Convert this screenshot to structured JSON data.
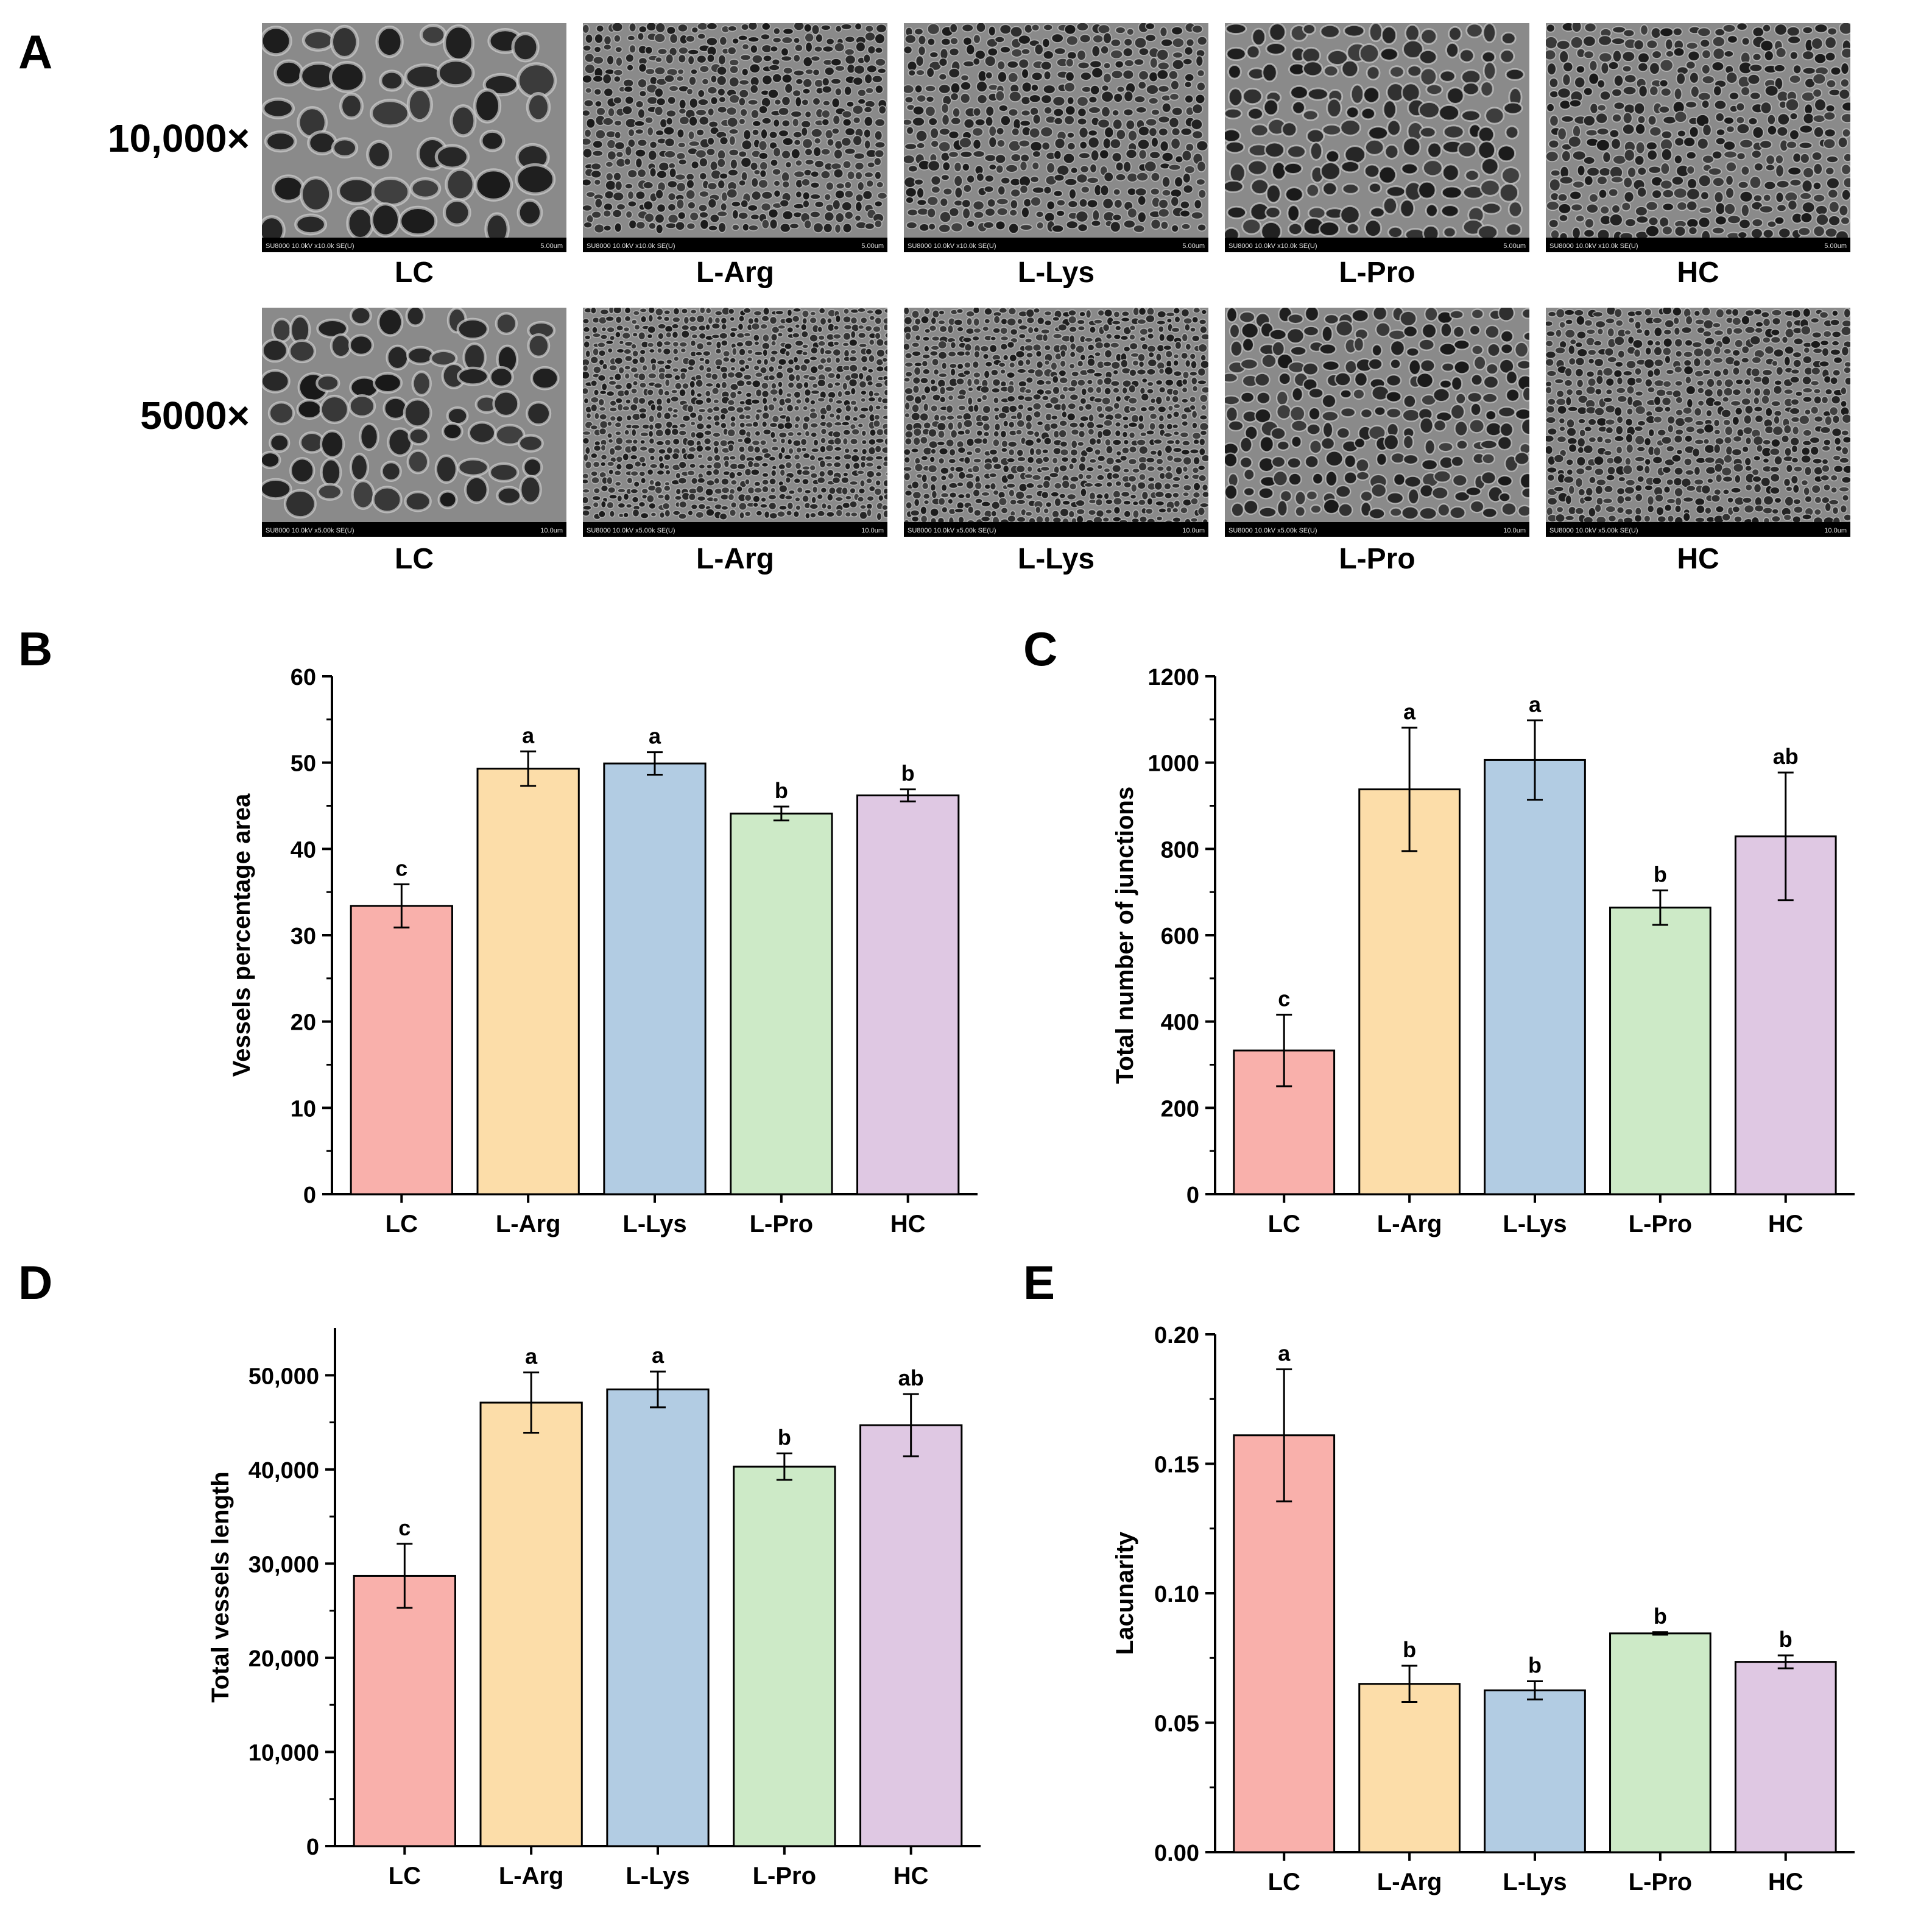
{
  "panels": {
    "A": "A",
    "B": "B",
    "C": "C",
    "D": "D",
    "E": "E"
  },
  "sem": {
    "rows": [
      {
        "magnification": "10,000×",
        "scale_text": "5.00um",
        "info_text": "SU8000 10.0kV x10.0k SE(U)"
      },
      {
        "magnification": "5000×",
        "scale_text": "10.0um",
        "info_text": "SU8000 10.0kV x5.00k SE(U)"
      }
    ],
    "groups": [
      "LC",
      "L-Arg",
      "L-Lys",
      "L-Pro",
      "HC"
    ]
  },
  "colors": {
    "LC": "#f9b0ab",
    "L-Arg": "#fcdda9",
    "L-Lys": "#b2cce3",
    "L-Pro": "#cdeac7",
    "HC": "#dfc8e3"
  },
  "chart_data": [
    {
      "id": "B",
      "type": "bar",
      "categories": [
        "LC",
        "L-Arg",
        "L-Lys",
        "L-Pro",
        "HC"
      ],
      "values": [
        33.4,
        49.3,
        49.9,
        44.1,
        46.2
      ],
      "errors": [
        2.5,
        2.0,
        1.3,
        0.8,
        0.7
      ],
      "significance": [
        "c",
        "a",
        "a",
        "b",
        "b"
      ],
      "ylabel": "Vessels percentage area",
      "ylim": [
        0,
        60
      ],
      "yticks": [
        0,
        10,
        20,
        30,
        40,
        50,
        60
      ],
      "ytick_labels": [
        "0",
        "10",
        "20",
        "30",
        "40",
        "50",
        "60"
      ]
    },
    {
      "id": "C",
      "type": "bar",
      "categories": [
        "LC",
        "L-Arg",
        "L-Lys",
        "L-Pro",
        "HC"
      ],
      "values": [
        333,
        938,
        1006,
        664,
        829
      ],
      "errors": [
        83,
        143,
        92,
        40,
        148
      ],
      "significance": [
        "c",
        "a",
        "a",
        "b",
        "ab"
      ],
      "ylabel": "Total number of junctions",
      "ylim": [
        0,
        1200
      ],
      "yticks": [
        0,
        200,
        400,
        600,
        800,
        1000,
        1200
      ],
      "ytick_labels": [
        "0",
        "200",
        "400",
        "600",
        "800",
        "1000",
        "1200"
      ]
    },
    {
      "id": "D",
      "type": "bar",
      "categories": [
        "LC",
        "L-Arg",
        "L-Lys",
        "L-Pro",
        "HC"
      ],
      "values": [
        28700,
        47100,
        48500,
        40300,
        44700
      ],
      "errors": [
        3400,
        3200,
        1900,
        1400,
        3300
      ],
      "significance": [
        "c",
        "a",
        "a",
        "b",
        "ab"
      ],
      "ylabel": "Total vessels length",
      "ylim": [
        0,
        55000
      ],
      "yticks": [
        0,
        10000,
        20000,
        30000,
        40000,
        50000
      ],
      "ytick_labels": [
        "0",
        "10,000",
        "20,000",
        "30,000",
        "40,000",
        "50,000"
      ]
    },
    {
      "id": "E",
      "type": "bar",
      "categories": [
        "LC",
        "L-Arg",
        "L-Lys",
        "L-Pro",
        "HC"
      ],
      "values": [
        0.161,
        0.065,
        0.0625,
        0.0845,
        0.0735
      ],
      "errors": [
        0.0255,
        0.007,
        0.0035,
        0.0005,
        0.0025
      ],
      "significance": [
        "a",
        "b",
        "b",
        "b",
        "b"
      ],
      "ylabel": "Lacunarity",
      "ylim": [
        0,
        0.2
      ],
      "yticks": [
        0,
        0.05,
        0.1,
        0.15,
        0.2
      ],
      "ytick_labels": [
        "0.00",
        "0.05",
        "0.10",
        "0.15",
        "0.20"
      ]
    }
  ]
}
